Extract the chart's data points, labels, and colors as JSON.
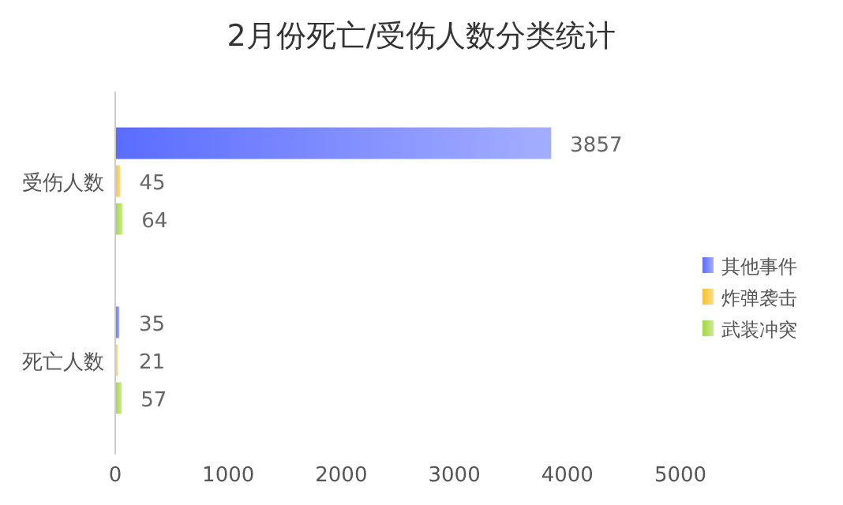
{
  "chart_data": {
    "type": "bar",
    "orientation": "horizontal",
    "title": "2月份死亡/受伤人数分类统计",
    "categories": [
      "受伤人数",
      "死亡人数"
    ],
    "series": [
      {
        "name": "其他事件",
        "color": "#5a6cfe",
        "values": [
          3857,
          35
        ]
      },
      {
        "name": "炸弹袭击",
        "color": "#fbc02d",
        "values": [
          45,
          21
        ]
      },
      {
        "name": "武装冲突",
        "color": "#a3d63f",
        "values": [
          64,
          57
        ]
      }
    ],
    "xlim": [
      0,
      5000
    ],
    "xticks": [
      0,
      1000,
      2000,
      3000,
      4000,
      5000
    ],
    "data_labels": true,
    "legend": "right",
    "grid": false
  }
}
